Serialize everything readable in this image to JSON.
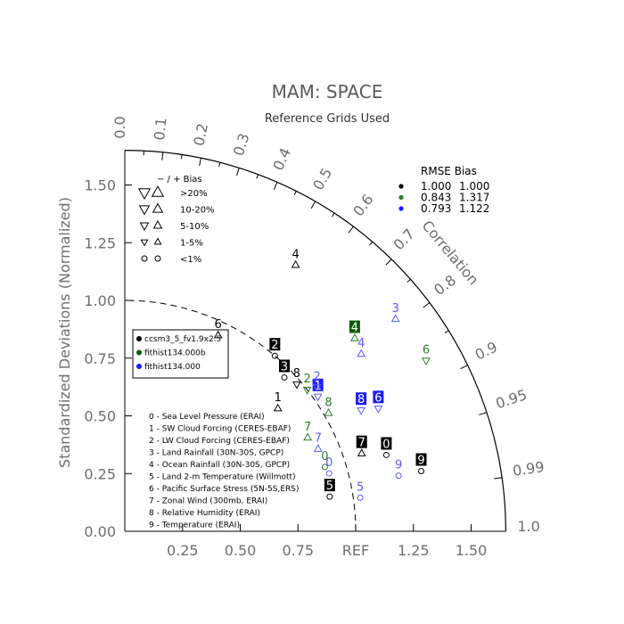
{
  "chart_data": {
    "type": "scatter",
    "title": "MAM: SPACE",
    "subtitle": "Reference Grids Used",
    "ylabel": "Standardized Deviations (Normalized)",
    "xlim": [
      0,
      1.65
    ],
    "ylim": [
      0,
      1.65
    ],
    "x_ticks": [
      "0.00",
      "0.25",
      "0.50",
      "0.75",
      "REF",
      "1.25",
      "1.50"
    ],
    "y_ticks": [
      "0.00",
      "0.25",
      "0.50",
      "0.75",
      "1.00",
      "1.25",
      "1.50"
    ],
    "correlation_label": "Correlation",
    "correlation_ticks": [
      "0.0",
      "0.1",
      "0.2",
      "0.3",
      "0.4",
      "0.5",
      "0.6",
      "0.7",
      "0.8",
      "0.9",
      "0.95",
      "0.99",
      "1.0"
    ],
    "bias_legend": {
      "header": "−  /  +      Bias",
      "entries": [
        ">20%",
        "10-20%",
        "5-10%",
        "1-5%",
        "<1%"
      ]
    },
    "rmse_table": {
      "header": "RMSE  Bias",
      "rows": [
        {
          "color": "#000000",
          "rmse": "1.000",
          "bias": "1.000"
        },
        {
          "color": "#2e7d32",
          "rmse": "0.843",
          "bias": "1.317"
        },
        {
          "color": "#1a1aff",
          "rmse": "0.793",
          "bias": "1.122"
        }
      ]
    },
    "series": [
      {
        "name": "ccsm3_5_fv1.9x2.5",
        "color": "#000000",
        "box_color": "#000000",
        "points": [
          {
            "id": "0",
            "std": 1.18,
            "corr": 0.96,
            "boxed": true,
            "marker": "circle"
          },
          {
            "id": "1",
            "std": 0.85,
            "corr": 0.78,
            "boxed": false,
            "marker": "tri-up"
          },
          {
            "id": "2",
            "std": 1.0,
            "corr": 0.65,
            "boxed": true,
            "marker": "circle"
          },
          {
            "id": "3",
            "std": 0.96,
            "corr": 0.72,
            "boxed": true,
            "marker": "circle"
          },
          {
            "id": "4",
            "std": 1.37,
            "corr": 0.54,
            "boxed": false,
            "marker": "tri-up"
          },
          {
            "id": "5",
            "std": 0.9,
            "corr": 0.986,
            "boxed": true,
            "marker": "circle"
          },
          {
            "id": "6",
            "std": 0.94,
            "corr": 0.43,
            "boxed": false,
            "marker": "tri-up"
          },
          {
            "id": "7",
            "std": 1.08,
            "corr": 0.95,
            "boxed": true,
            "marker": "tri-up"
          },
          {
            "id": "8",
            "std": 0.98,
            "corr": 0.76,
            "boxed": false,
            "marker": "tri-down"
          },
          {
            "id": "9",
            "std": 1.31,
            "corr": 0.98,
            "boxed": true,
            "marker": "circle"
          }
        ]
      },
      {
        "name": "fithist134.000b",
        "color": "#2e7d32",
        "box_color": "#0a5a0a",
        "points": [
          {
            "id": "0",
            "std": 0.91,
            "corr": 0.952,
            "boxed": false,
            "marker": "circle"
          },
          {
            "id": "2",
            "std": 1.0,
            "corr": 0.79,
            "boxed": false,
            "marker": "tri-down"
          },
          {
            "id": "4",
            "std": 1.3,
            "corr": 0.766,
            "boxed": true,
            "marker": "tri-up"
          },
          {
            "id": "6",
            "std": 1.5,
            "corr": 0.87,
            "boxed": false,
            "marker": "tri-down"
          },
          {
            "id": "7",
            "std": 0.89,
            "corr": 0.89,
            "boxed": false,
            "marker": "tri-up"
          },
          {
            "id": "8",
            "std": 1.02,
            "corr": 0.865,
            "boxed": false,
            "marker": "tri-up"
          }
        ]
      },
      {
        "name": "fithist134.000",
        "color": "#5b5bff",
        "box_color": "#1a1aff",
        "points": [
          {
            "id": "0",
            "std": 0.92,
            "corr": 0.962,
            "boxed": false,
            "marker": "circle"
          },
          {
            "id": "1",
            "std": 1.02,
            "corr": 0.82,
            "boxed": true,
            "marker": "tri-down"
          },
          {
            "id": "2",
            "std": 1.04,
            "corr": 0.8,
            "boxed": false,
            "marker": "tri-down"
          },
          {
            "id": "3",
            "std": 1.49,
            "corr": 0.787,
            "boxed": false,
            "marker": "tri-up"
          },
          {
            "id": "4",
            "std": 1.28,
            "corr": 0.8,
            "boxed": false,
            "marker": "tri-up"
          },
          {
            "id": "5",
            "std": 1.03,
            "corr": 0.99,
            "boxed": false,
            "marker": "circle"
          },
          {
            "id": "6",
            "std": 1.22,
            "corr": 0.9,
            "boxed": true,
            "marker": "tri-down"
          },
          {
            "id": "7",
            "std": 0.91,
            "corr": 0.92,
            "boxed": false,
            "marker": "tri-up"
          },
          {
            "id": "8",
            "std": 1.15,
            "corr": 0.89,
            "boxed": true,
            "marker": "tri-down"
          },
          {
            "id": "9",
            "std": 1.21,
            "corr": 0.98,
            "boxed": false,
            "marker": "circle"
          }
        ]
      }
    ],
    "variables": [
      "0 - Sea Level Pressure (ERAI)",
      "1 - SW Cloud Forcing (CERES-EBAF)",
      "2 - LW Cloud Forcing (CERES-EBAF)",
      "3 - Land Rainfall (30N-30S, GPCP)",
      "4 - Ocean Rainfall (30N-30S, GPCP)",
      "5 - Land 2-m Temperature (Willmott)",
      "6 - Pacific Surface Stress (5N-5S,ERS)",
      "7 - Zonal Wind (300mb, ERAI)",
      "8 - Relative Humidity (ERAI)",
      "9 - Temperature (ERAI)"
    ]
  }
}
